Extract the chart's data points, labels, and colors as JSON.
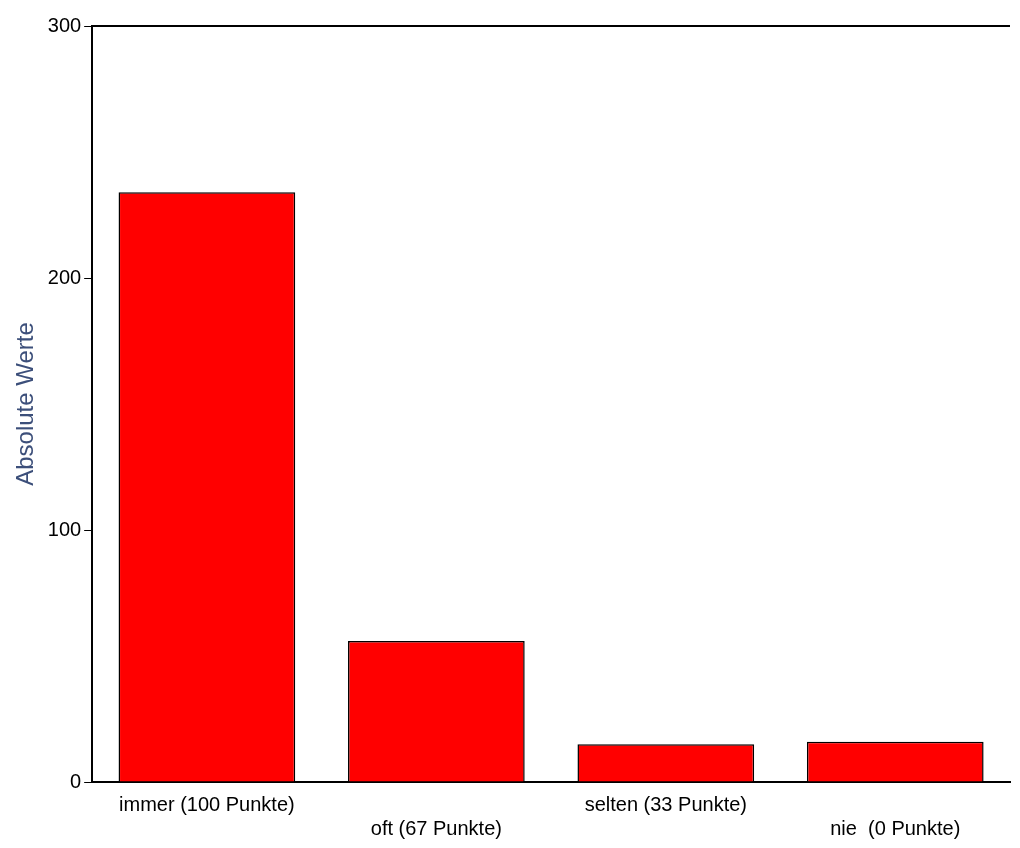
{
  "chart_data": {
    "type": "bar",
    "ylabel": "Absolute Werte",
    "categories": [
      "immer (100 Punkte)",
      "oft (67 Punkte)",
      "selten (33 Punkte)",
      "nie  (0 Punkte)"
    ],
    "values": [
      234,
      56,
      15,
      16
    ],
    "color": "#ff0000",
    "ylim": [
      0,
      300
    ],
    "yticks": [
      0,
      100,
      200,
      300
    ],
    "grid": false
  }
}
